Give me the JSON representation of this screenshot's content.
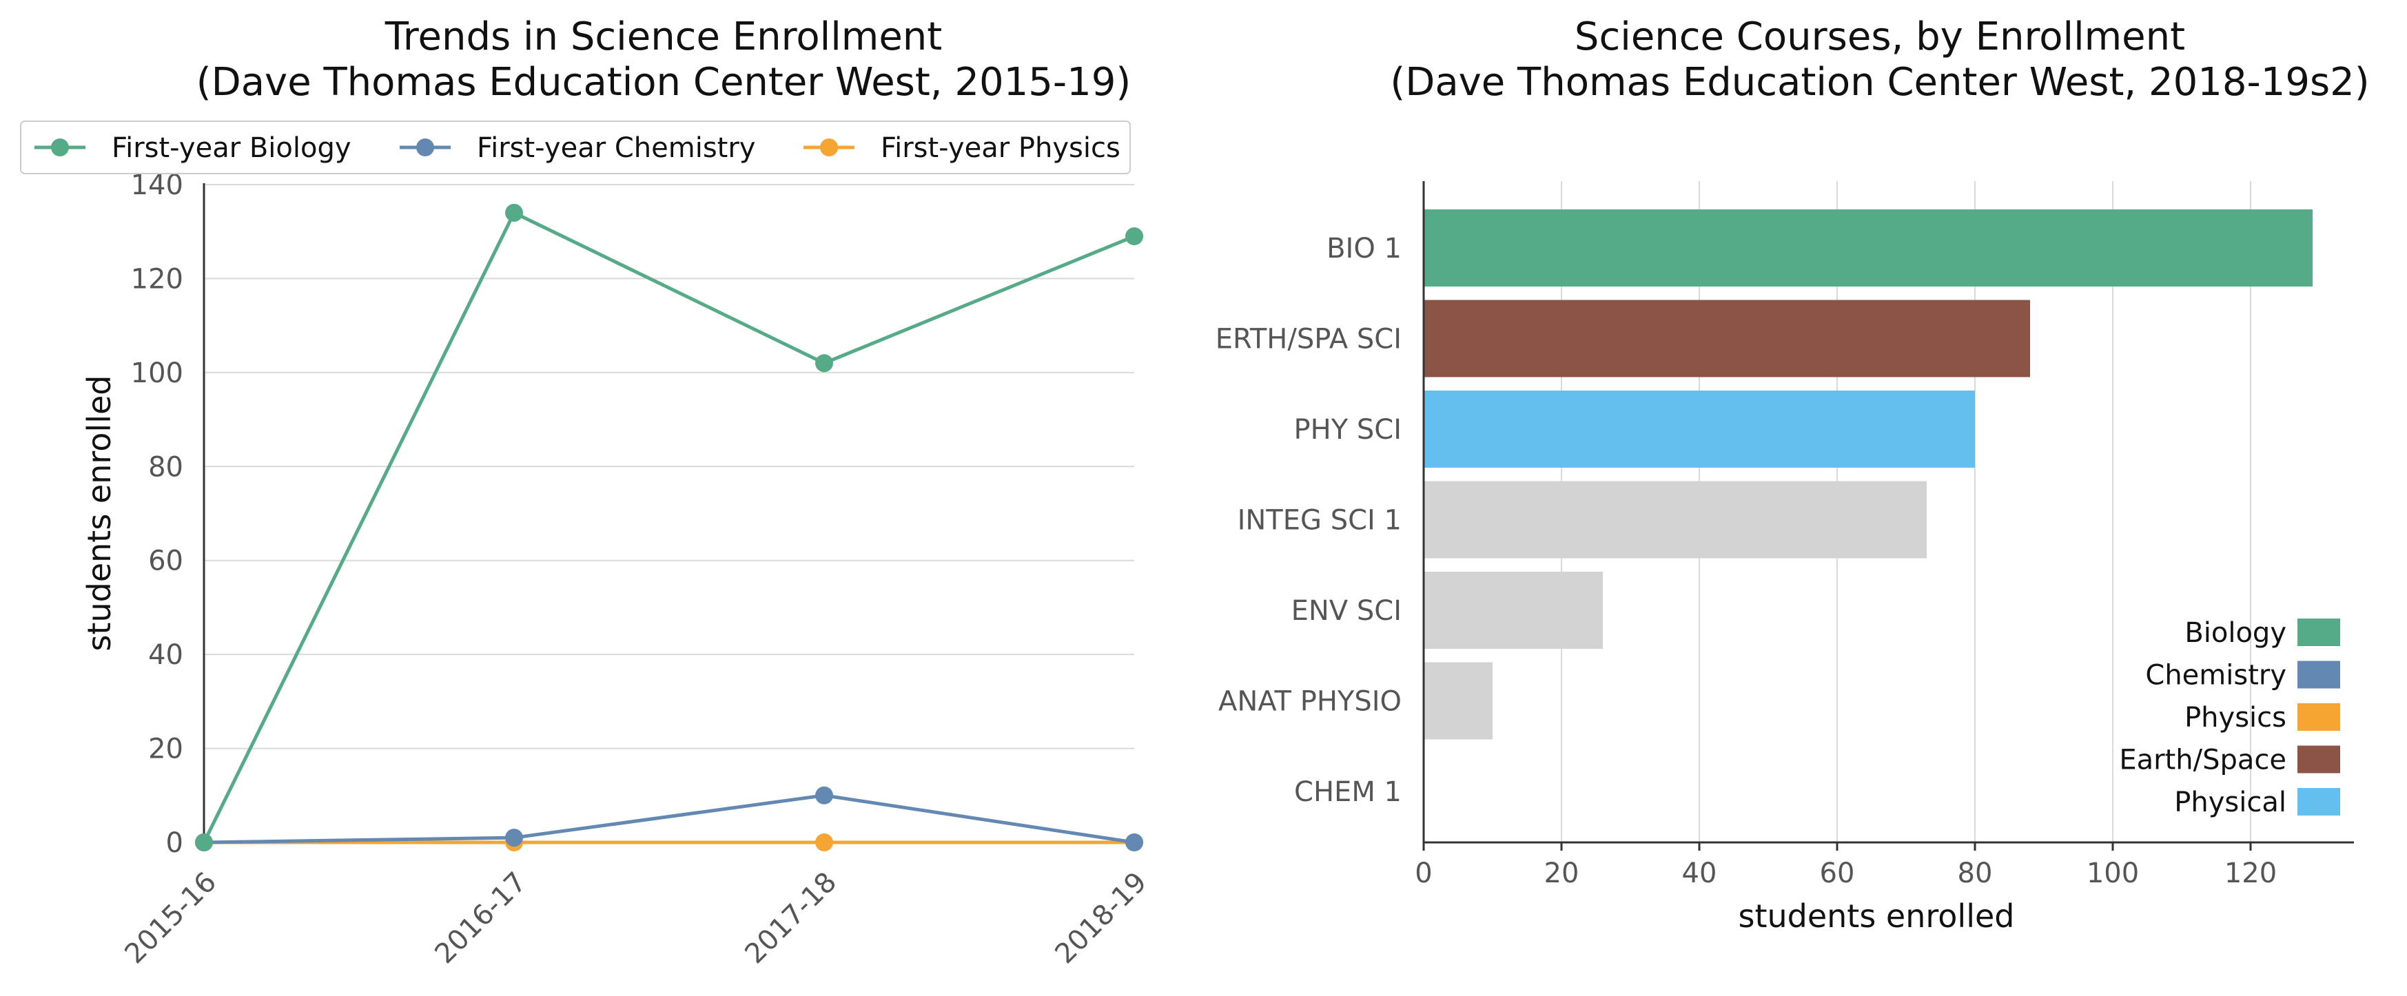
{
  "chart_data": [
    {
      "type": "line",
      "title": "Trends in Science Enrollment",
      "subtitle": "(Dave Thomas Education Center West, 2015-19)",
      "xlabel": "",
      "ylabel": "students enrolled",
      "categories": [
        "2015-16",
        "2016-17",
        "2017-18",
        "2018-19"
      ],
      "ylim": [
        0,
        140
      ],
      "yticks": [
        0,
        20,
        40,
        60,
        80,
        100,
        120,
        140
      ],
      "grid": "horizontal",
      "legend": "top",
      "series": [
        {
          "name": "First-year Biology",
          "color": "#55ab88",
          "values": [
            0,
            134,
            102,
            129
          ]
        },
        {
          "name": "First-year Chemistry",
          "color": "#6389b2",
          "values": [
            0,
            1,
            10,
            0
          ]
        },
        {
          "name": "First-year Physics",
          "color": "#f7a532",
          "values": [
            0,
            0,
            0,
            0
          ]
        }
      ]
    },
    {
      "type": "bar",
      "orientation": "horizontal",
      "title": "Science Courses, by Enrollment",
      "subtitle": "(Dave Thomas Education Center West, 2018-19s2)",
      "xlabel": "students enrolled",
      "ylabel": "",
      "xlim": [
        0,
        135
      ],
      "xticks": [
        0,
        20,
        40,
        60,
        80,
        100,
        120
      ],
      "grid": "vertical",
      "legend": "bottom-right",
      "categories": [
        "BIO 1",
        "ERTH/SPA SCI",
        "PHY SCI",
        "INTEG SCI 1",
        "ENV SCI",
        "ANAT PHYSIO",
        "CHEM 1"
      ],
      "values": [
        129,
        88,
        80,
        73,
        26,
        10,
        0
      ],
      "bar_colors": [
        "#55ab88",
        "#8b5447",
        "#63bfee",
        "#d3d3d3",
        "#d3d3d3",
        "#d3d3d3",
        "#d3d3d3"
      ],
      "legend_entries": [
        {
          "name": "Biology",
          "color": "#55ab88"
        },
        {
          "name": "Chemistry",
          "color": "#6389b2"
        },
        {
          "name": "Physics",
          "color": "#f7a532"
        },
        {
          "name": "Earth/Space",
          "color": "#8b5447"
        },
        {
          "name": "Physical",
          "color": "#63bfee"
        }
      ]
    }
  ]
}
